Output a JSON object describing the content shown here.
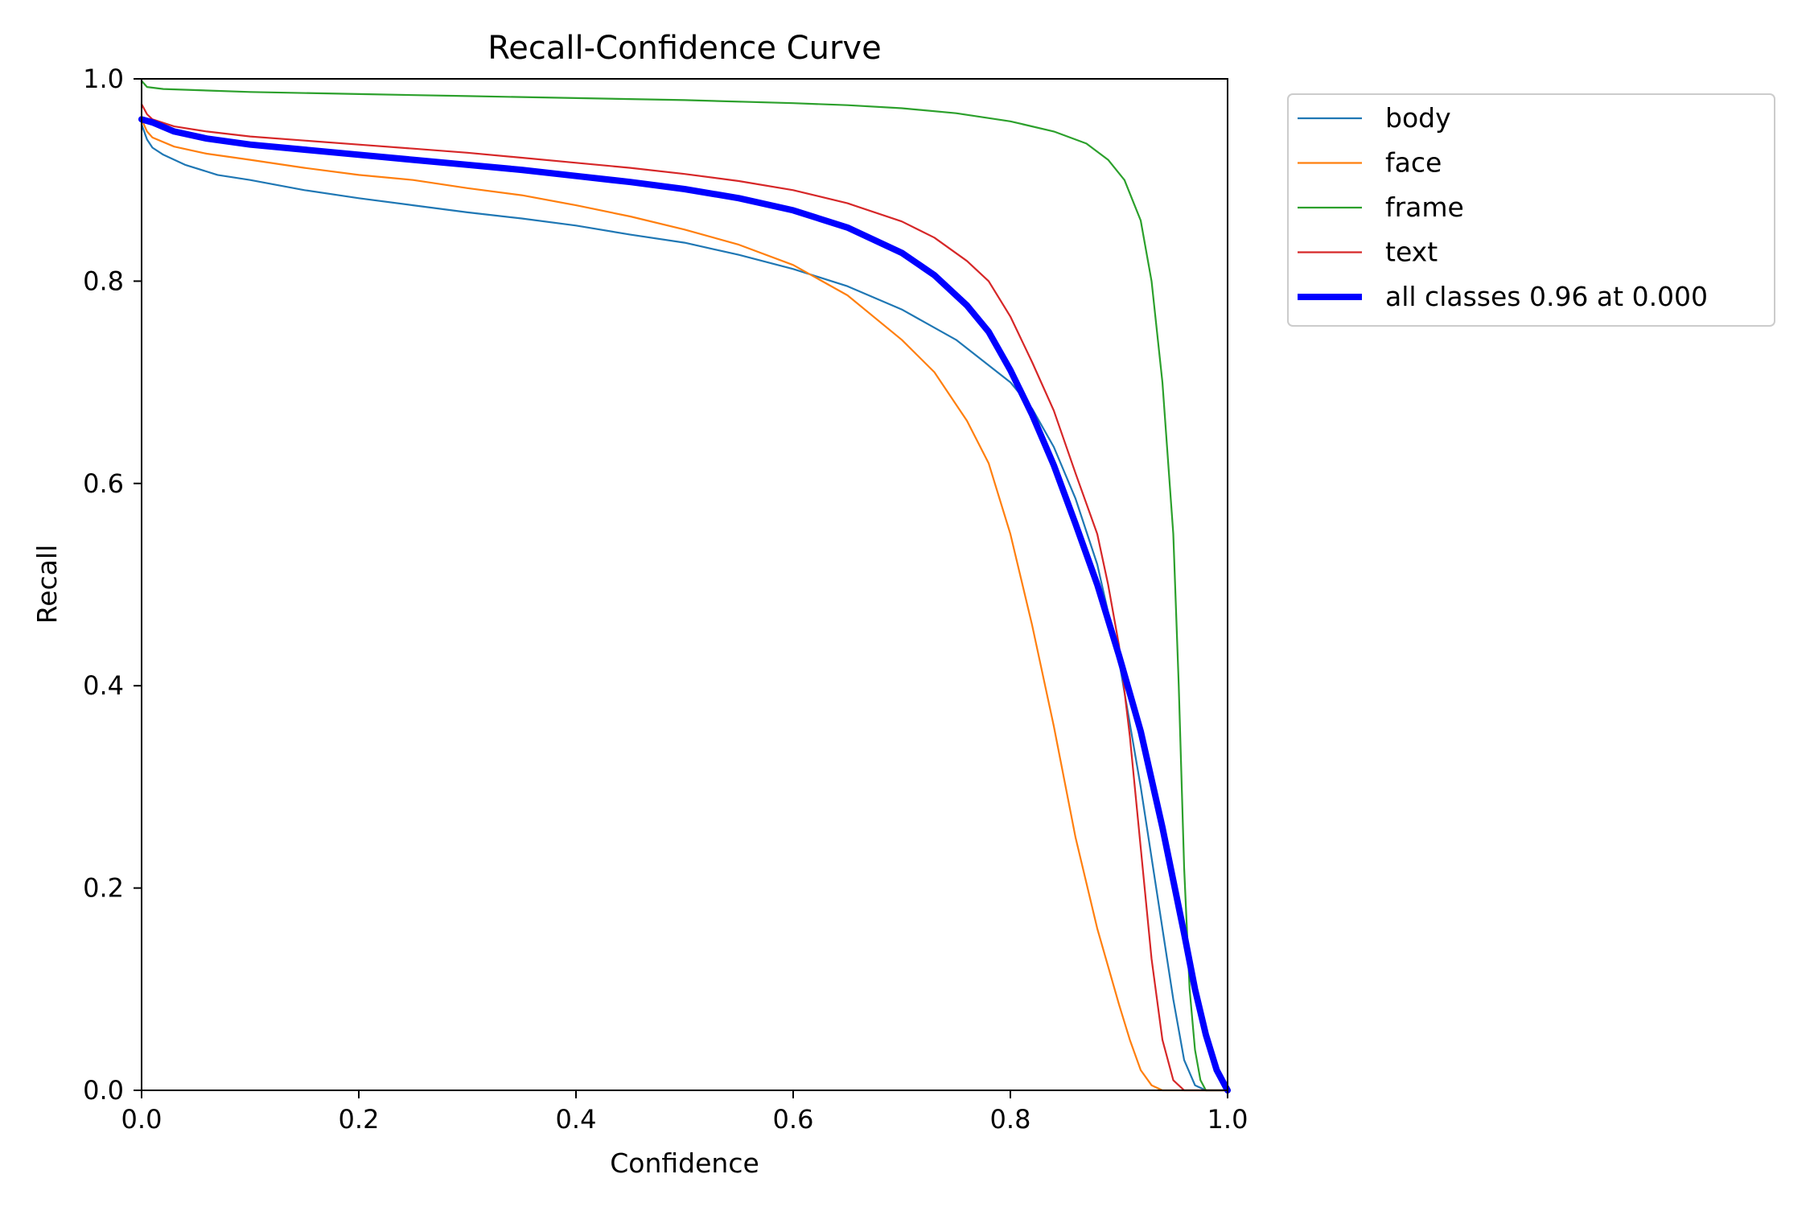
{
  "chart_data": {
    "type": "line",
    "title": "Recall-Confidence Curve",
    "xlabel": "Confidence",
    "ylabel": "Recall",
    "xlim": [
      0.0,
      1.0
    ],
    "ylim": [
      0.0,
      1.0
    ],
    "xticks": [
      "0.0",
      "0.2",
      "0.4",
      "0.6",
      "0.8",
      "1.0"
    ],
    "yticks": [
      "0.0",
      "0.2",
      "0.4",
      "0.6",
      "0.8",
      "1.0"
    ],
    "grid": false,
    "legend_position": "outside-upper-right",
    "series": [
      {
        "name": "body",
        "color": "#1f77b4",
        "points": [
          [
            0.0,
            0.955
          ],
          [
            0.005,
            0.94
          ],
          [
            0.01,
            0.932
          ],
          [
            0.02,
            0.925
          ],
          [
            0.04,
            0.915
          ],
          [
            0.07,
            0.905
          ],
          [
            0.1,
            0.9
          ],
          [
            0.15,
            0.89
          ],
          [
            0.2,
            0.882
          ],
          [
            0.25,
            0.875
          ],
          [
            0.3,
            0.868
          ],
          [
            0.35,
            0.862
          ],
          [
            0.4,
            0.855
          ],
          [
            0.45,
            0.846
          ],
          [
            0.5,
            0.838
          ],
          [
            0.55,
            0.826
          ],
          [
            0.6,
            0.812
          ],
          [
            0.65,
            0.795
          ],
          [
            0.7,
            0.772
          ],
          [
            0.75,
            0.742
          ],
          [
            0.8,
            0.7
          ],
          [
            0.82,
            0.674
          ],
          [
            0.84,
            0.636
          ],
          [
            0.86,
            0.585
          ],
          [
            0.88,
            0.52
          ],
          [
            0.9,
            0.425
          ],
          [
            0.92,
            0.3
          ],
          [
            0.94,
            0.16
          ],
          [
            0.95,
            0.09
          ],
          [
            0.96,
            0.03
          ],
          [
            0.97,
            0.005
          ],
          [
            0.98,
            0.0
          ],
          [
            1.0,
            0.0
          ]
        ]
      },
      {
        "name": "face",
        "color": "#ff7f0e",
        "points": [
          [
            0.0,
            0.96
          ],
          [
            0.005,
            0.948
          ],
          [
            0.01,
            0.942
          ],
          [
            0.03,
            0.933
          ],
          [
            0.06,
            0.926
          ],
          [
            0.1,
            0.92
          ],
          [
            0.15,
            0.912
          ],
          [
            0.2,
            0.905
          ],
          [
            0.25,
            0.9
          ],
          [
            0.3,
            0.892
          ],
          [
            0.35,
            0.885
          ],
          [
            0.4,
            0.875
          ],
          [
            0.45,
            0.864
          ],
          [
            0.5,
            0.851
          ],
          [
            0.55,
            0.836
          ],
          [
            0.6,
            0.816
          ],
          [
            0.65,
            0.786
          ],
          [
            0.7,
            0.742
          ],
          [
            0.73,
            0.71
          ],
          [
            0.76,
            0.662
          ],
          [
            0.78,
            0.62
          ],
          [
            0.8,
            0.55
          ],
          [
            0.82,
            0.46
          ],
          [
            0.84,
            0.36
          ],
          [
            0.86,
            0.25
          ],
          [
            0.88,
            0.16
          ],
          [
            0.9,
            0.085
          ],
          [
            0.91,
            0.05
          ],
          [
            0.92,
            0.02
          ],
          [
            0.93,
            0.005
          ],
          [
            0.94,
            0.0
          ],
          [
            1.0,
            0.0
          ]
        ]
      },
      {
        "name": "frame",
        "color": "#2ca02c",
        "points": [
          [
            0.0,
            0.998
          ],
          [
            0.005,
            0.992
          ],
          [
            0.02,
            0.99
          ],
          [
            0.1,
            0.987
          ],
          [
            0.2,
            0.985
          ],
          [
            0.3,
            0.983
          ],
          [
            0.4,
            0.981
          ],
          [
            0.5,
            0.979
          ],
          [
            0.6,
            0.976
          ],
          [
            0.65,
            0.974
          ],
          [
            0.7,
            0.971
          ],
          [
            0.75,
            0.966
          ],
          [
            0.8,
            0.958
          ],
          [
            0.84,
            0.948
          ],
          [
            0.87,
            0.936
          ],
          [
            0.89,
            0.92
          ],
          [
            0.905,
            0.9
          ],
          [
            0.92,
            0.86
          ],
          [
            0.93,
            0.8
          ],
          [
            0.94,
            0.7
          ],
          [
            0.95,
            0.55
          ],
          [
            0.955,
            0.4
          ],
          [
            0.96,
            0.22
          ],
          [
            0.965,
            0.1
          ],
          [
            0.97,
            0.04
          ],
          [
            0.975,
            0.01
          ],
          [
            0.98,
            0.0
          ],
          [
            1.0,
            0.0
          ]
        ]
      },
      {
        "name": "text",
        "color": "#d62728",
        "points": [
          [
            0.0,
            0.975
          ],
          [
            0.005,
            0.965
          ],
          [
            0.01,
            0.96
          ],
          [
            0.03,
            0.953
          ],
          [
            0.06,
            0.948
          ],
          [
            0.1,
            0.943
          ],
          [
            0.15,
            0.939
          ],
          [
            0.2,
            0.935
          ],
          [
            0.25,
            0.931
          ],
          [
            0.3,
            0.927
          ],
          [
            0.35,
            0.922
          ],
          [
            0.4,
            0.917
          ],
          [
            0.45,
            0.912
          ],
          [
            0.5,
            0.906
          ],
          [
            0.55,
            0.899
          ],
          [
            0.6,
            0.89
          ],
          [
            0.65,
            0.877
          ],
          [
            0.7,
            0.859
          ],
          [
            0.73,
            0.843
          ],
          [
            0.76,
            0.82
          ],
          [
            0.78,
            0.8
          ],
          [
            0.8,
            0.765
          ],
          [
            0.82,
            0.72
          ],
          [
            0.84,
            0.672
          ],
          [
            0.86,
            0.61
          ],
          [
            0.88,
            0.55
          ],
          [
            0.89,
            0.5
          ],
          [
            0.9,
            0.44
          ],
          [
            0.91,
            0.35
          ],
          [
            0.92,
            0.24
          ],
          [
            0.93,
            0.13
          ],
          [
            0.94,
            0.05
          ],
          [
            0.95,
            0.01
          ],
          [
            0.96,
            0.0
          ],
          [
            1.0,
            0.0
          ]
        ]
      },
      {
        "name": "all classes 0.96 at 0.000",
        "color": "#0000ff",
        "bold": true,
        "points": [
          [
            0.0,
            0.96
          ],
          [
            0.01,
            0.957
          ],
          [
            0.03,
            0.948
          ],
          [
            0.06,
            0.941
          ],
          [
            0.1,
            0.935
          ],
          [
            0.15,
            0.93
          ],
          [
            0.2,
            0.925
          ],
          [
            0.25,
            0.92
          ],
          [
            0.3,
            0.915
          ],
          [
            0.35,
            0.91
          ],
          [
            0.4,
            0.904
          ],
          [
            0.45,
            0.898
          ],
          [
            0.5,
            0.891
          ],
          [
            0.55,
            0.882
          ],
          [
            0.6,
            0.87
          ],
          [
            0.65,
            0.853
          ],
          [
            0.7,
            0.828
          ],
          [
            0.73,
            0.806
          ],
          [
            0.76,
            0.776
          ],
          [
            0.78,
            0.75
          ],
          [
            0.8,
            0.712
          ],
          [
            0.82,
            0.668
          ],
          [
            0.84,
            0.618
          ],
          [
            0.86,
            0.56
          ],
          [
            0.88,
            0.5
          ],
          [
            0.9,
            0.43
          ],
          [
            0.92,
            0.355
          ],
          [
            0.94,
            0.26
          ],
          [
            0.96,
            0.155
          ],
          [
            0.97,
            0.1
          ],
          [
            0.98,
            0.055
          ],
          [
            0.99,
            0.02
          ],
          [
            1.0,
            0.0
          ]
        ]
      }
    ]
  }
}
